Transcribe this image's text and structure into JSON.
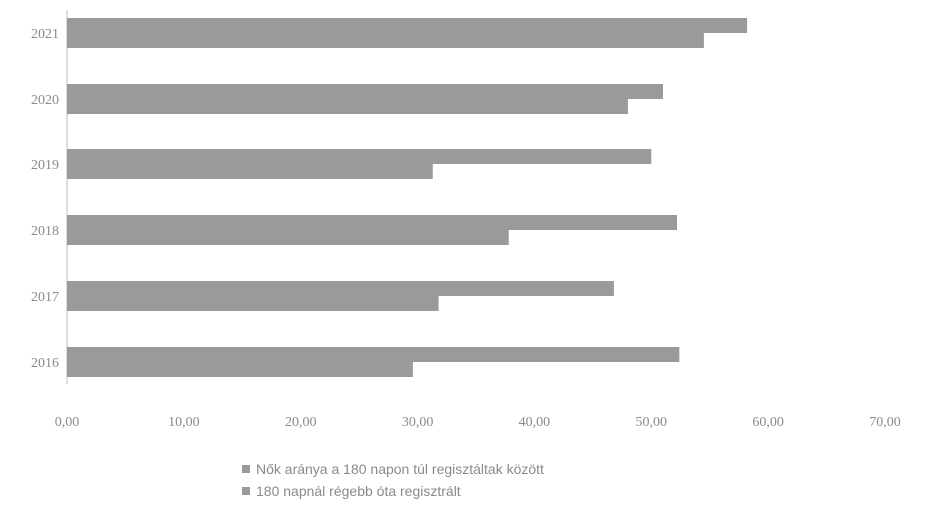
{
  "chart_data": {
    "type": "bar",
    "orientation": "horizontal",
    "categories": [
      "2021",
      "2020",
      "2019",
      "2018",
      "2017",
      "2016"
    ],
    "series": [
      {
        "name": "Nők aránya a 180 napon túl regisztáltak között",
        "values": [
          58.2,
          51.0,
          50.0,
          52.2,
          46.8,
          52.4
        ],
        "color": "#9a9a9a"
      },
      {
        "name": "180 napnál régebb óta regisztrált",
        "values": [
          54.5,
          48.0,
          31.3,
          37.8,
          31.8,
          29.6
        ],
        "color": "#9a9a9a"
      }
    ],
    "xlim": [
      0,
      70
    ],
    "xticks": [
      "0,00",
      "10,00",
      "20,00",
      "30,00",
      "40,00",
      "50,00",
      "60,00",
      "70,00"
    ],
    "grid": false,
    "legend_position": "bottom"
  }
}
